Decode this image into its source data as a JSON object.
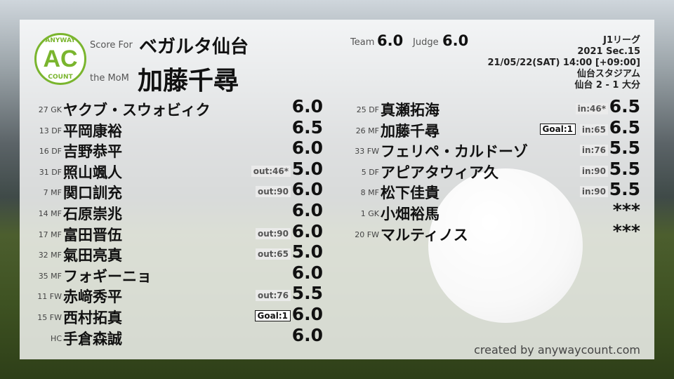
{
  "header": {
    "logo_top": "ANYWAY",
    "logo_main": "AC",
    "logo_bottom": "COUNT",
    "score_for_label": "Score For",
    "team": "ベガルタ仙台",
    "mom_label": "the MoM",
    "mom": "加藤千尋",
    "team_label": "Team",
    "team_score": "6.0",
    "judge_label": "Judge",
    "judge_score": "6.0"
  },
  "match": {
    "league": "J1リーグ",
    "section": "2021 Sec.15",
    "datetime": "21/05/22(SAT) 14:00 [+09:00]",
    "venue": "仙台スタジアム",
    "result": "仙台 2 - 1 大分"
  },
  "left_players": [
    {
      "pos": "27 GK",
      "name": "ヤクブ・スウォビィク",
      "score": "6.0",
      "tag": "",
      "goal": ""
    },
    {
      "pos": "13 DF",
      "name": "平岡康裕",
      "score": "6.5",
      "tag": "",
      "goal": ""
    },
    {
      "pos": "16 DF",
      "name": "吉野恭平",
      "score": "6.0",
      "tag": "",
      "goal": ""
    },
    {
      "pos": "31 DF",
      "name": "照山颯人",
      "score": "5.0",
      "tag": "out:46*",
      "goal": ""
    },
    {
      "pos": "7 MF",
      "name": "関口訓充",
      "score": "6.0",
      "tag": "out:90",
      "goal": ""
    },
    {
      "pos": "14 MF",
      "name": "石原崇兆",
      "score": "6.0",
      "tag": "",
      "goal": ""
    },
    {
      "pos": "17 MF",
      "name": "富田晋伍",
      "score": "6.0",
      "tag": "out:90",
      "goal": ""
    },
    {
      "pos": "32 MF",
      "name": "氣田亮真",
      "score": "5.0",
      "tag": "out:65",
      "goal": ""
    },
    {
      "pos": "35 MF",
      "name": "フォギーニョ",
      "score": "6.0",
      "tag": "",
      "goal": ""
    },
    {
      "pos": "11 FW",
      "name": "赤﨑秀平",
      "score": "5.5",
      "tag": "out:76",
      "goal": ""
    },
    {
      "pos": "15 FW",
      "name": "西村拓真",
      "score": "6.0",
      "tag": "",
      "goal": "Goal:1"
    },
    {
      "pos": "HC",
      "name": "手倉森誠",
      "score": "6.0",
      "tag": "",
      "goal": ""
    }
  ],
  "right_players": [
    {
      "pos": "25 DF",
      "name": "真瀬拓海",
      "score": "6.5",
      "tag": "in:46*",
      "goal": ""
    },
    {
      "pos": "26 MF",
      "name": "加藤千尋",
      "score": "6.5",
      "tag": "in:65",
      "goal": "Goal:1"
    },
    {
      "pos": "33 FW",
      "name": "フェリペ・カルドーゾ",
      "score": "5.5",
      "tag": "in:76",
      "goal": ""
    },
    {
      "pos": "5 DF",
      "name": "アピアタウィア久",
      "score": "5.5",
      "tag": "in:90",
      "goal": ""
    },
    {
      "pos": "8 MF",
      "name": "松下佳貴",
      "score": "5.5",
      "tag": "in:90",
      "goal": ""
    },
    {
      "pos": "1 GK",
      "name": "小畑裕馬",
      "score": "***",
      "tag": "",
      "goal": ""
    },
    {
      "pos": "20 FW",
      "name": "マルティノス",
      "score": "***",
      "tag": "",
      "goal": ""
    }
  ],
  "credit": "created by anywaycount.com",
  "colors": {
    "brand": "#7ab52e"
  }
}
